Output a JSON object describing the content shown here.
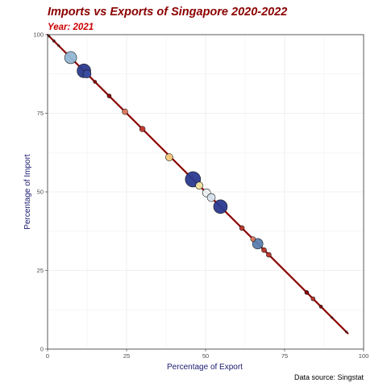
{
  "chart_data": {
    "type": "scatter",
    "title": "Imports vs Exports of Singapore 2020-2022",
    "subtitle": "Year: 2021",
    "xlabel": "Percentage of Export",
    "ylabel": "Percentage of Import",
    "caption": "Data source: Singstat",
    "xlim": [
      0,
      100
    ],
    "ylim": [
      0,
      100
    ],
    "xticks": [
      "0",
      "25",
      "50",
      "75",
      "100"
    ],
    "yticks": [
      "0",
      "25",
      "50",
      "75",
      "100"
    ],
    "grid": true,
    "trend_line": {
      "from": [
        0,
        100
      ],
      "to": [
        95,
        5
      ],
      "color": "#8b0000"
    },
    "points": [
      {
        "x": 0.5,
        "y": 99.5,
        "size": 1.2,
        "color": "#8b0000"
      },
      {
        "x": 2.0,
        "y": 98.0,
        "size": 1.5,
        "color": "#8b0000"
      },
      {
        "x": 3.5,
        "y": 96.5,
        "size": 1.2,
        "color": "#8b0000"
      },
      {
        "x": 7.3,
        "y": 92.7,
        "size": 7.5,
        "color": "#92b8d6"
      },
      {
        "x": 11.5,
        "y": 88.5,
        "size": 8.5,
        "color": "#2b3a8f"
      },
      {
        "x": 12.5,
        "y": 87.5,
        "size": 5.0,
        "color": "#3a4da0"
      },
      {
        "x": 15.0,
        "y": 85.0,
        "size": 2.0,
        "color": "#8b0000"
      },
      {
        "x": 19.5,
        "y": 80.5,
        "size": 2.5,
        "color": "#8b0000"
      },
      {
        "x": 24.5,
        "y": 75.5,
        "size": 3.5,
        "color": "#e07a5f"
      },
      {
        "x": 30.0,
        "y": 70.0,
        "size": 3.5,
        "color": "#c0392b"
      },
      {
        "x": 38.5,
        "y": 61.0,
        "size": 4.5,
        "color": "#f5c97a"
      },
      {
        "x": 46.0,
        "y": 54.0,
        "size": 9.5,
        "color": "#2b3a8f"
      },
      {
        "x": 48.0,
        "y": 52.0,
        "size": 4.5,
        "color": "#f7e6a0"
      },
      {
        "x": 50.3,
        "y": 49.7,
        "size": 5.0,
        "color": "#eef4f8"
      },
      {
        "x": 51.8,
        "y": 48.2,
        "size": 5.0,
        "color": "#d8e6f0"
      },
      {
        "x": 54.7,
        "y": 45.3,
        "size": 8.5,
        "color": "#2b3a8f"
      },
      {
        "x": 61.5,
        "y": 38.5,
        "size": 3.0,
        "color": "#c0392b"
      },
      {
        "x": 65.0,
        "y": 35.0,
        "size": 3.0,
        "color": "#e07a5f"
      },
      {
        "x": 66.5,
        "y": 33.5,
        "size": 6.5,
        "color": "#5a80b0"
      },
      {
        "x": 68.5,
        "y": 31.5,
        "size": 3.0,
        "color": "#c0392b"
      },
      {
        "x": 70.0,
        "y": 30.0,
        "size": 3.0,
        "color": "#c0392b"
      },
      {
        "x": 82.0,
        "y": 18.0,
        "size": 2.5,
        "color": "#8b0000"
      },
      {
        "x": 84.0,
        "y": 16.0,
        "size": 2.5,
        "color": "#c0392b"
      },
      {
        "x": 86.5,
        "y": 13.5,
        "size": 2.0,
        "color": "#8b0000"
      },
      {
        "x": 90.0,
        "y": 10.0,
        "size": 1.2,
        "color": "#8b0000"
      },
      {
        "x": 94.5,
        "y": 5.5,
        "size": 1.2,
        "color": "#8b0000"
      }
    ]
  },
  "colors": {
    "title": "#8b0000",
    "subtitle": "#cc0000",
    "axis_title": "#191970",
    "grid": "#ebebeb",
    "panel_border": "#333333"
  }
}
